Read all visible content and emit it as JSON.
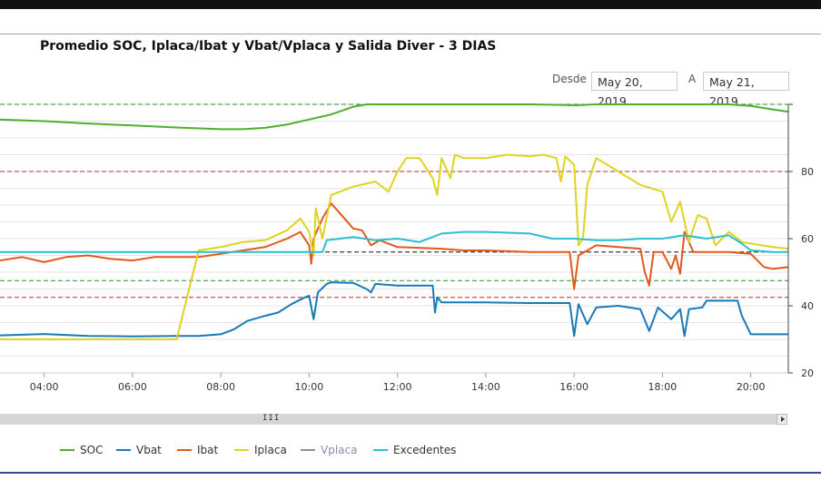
{
  "header": {
    "title": "Promedio SOC, Iplaca/Ibat y Vbat/Vplaca y Salida Diver - 3 DIAS",
    "from_label": "Desde",
    "from_date": "May 20, 2019",
    "to_label": "A",
    "to_date": "May 21, 2019"
  },
  "scrollbar": {
    "grip": "III"
  },
  "chart_data": {
    "type": "line",
    "title": "Promedio SOC, Iplaca/Ibat y Vbat/Vplaca y Salida Diver - 3 DIAS",
    "xlabel": "",
    "ylabel": "",
    "x_range_hours": [
      3.0,
      20.85
    ],
    "x_ticks": [
      "04:00",
      "06:00",
      "08:00",
      "10:00",
      "12:00",
      "14:00",
      "16:00",
      "18:00",
      "20:00"
    ],
    "y_range": [
      20,
      100
    ],
    "y_ticks": [
      20,
      40,
      60,
      80
    ],
    "grid": true,
    "legend_position": "bottom-left",
    "reference_lines": [
      {
        "value": 100,
        "color": "#2e8b2e",
        "style": "dashed"
      },
      {
        "value": 80,
        "color": "#c0272d",
        "style": "dashed"
      },
      {
        "value": 56,
        "color": "#111111",
        "style": "dashed",
        "x_start_hour": 10.2
      },
      {
        "value": 47.5,
        "color": "#2e8b2e",
        "style": "dashed"
      },
      {
        "value": 42.5,
        "color": "#c0272d",
        "style": "dashed"
      }
    ],
    "series": [
      {
        "name": "SOC",
        "color": "#4fae2c",
        "points": [
          [
            3.0,
            95.5
          ],
          [
            4.0,
            95.0
          ],
          [
            5.0,
            94.3
          ],
          [
            6.0,
            93.7
          ],
          [
            7.0,
            93.1
          ],
          [
            8.0,
            92.6
          ],
          [
            8.5,
            92.6
          ],
          [
            9.0,
            93.0
          ],
          [
            9.5,
            94.0
          ],
          [
            10.0,
            95.5
          ],
          [
            10.5,
            97.0
          ],
          [
            11.0,
            99.3
          ],
          [
            11.3,
            100
          ],
          [
            12.0,
            100
          ],
          [
            13.0,
            100
          ],
          [
            14.0,
            100
          ],
          [
            15.0,
            100
          ],
          [
            15.8,
            99.8
          ],
          [
            16.0,
            99.7
          ],
          [
            16.5,
            100
          ],
          [
            17.0,
            100
          ],
          [
            18.0,
            100
          ],
          [
            19.0,
            100
          ],
          [
            19.5,
            100
          ],
          [
            20.0,
            99.5
          ],
          [
            20.5,
            98.5
          ],
          [
            20.85,
            97.8
          ]
        ]
      },
      {
        "name": "Vbat",
        "color": "#1a7ab8",
        "points": [
          [
            3.0,
            31.2
          ],
          [
            4.0,
            31.6
          ],
          [
            5.0,
            31.0
          ],
          [
            6.0,
            30.9
          ],
          [
            7.0,
            31.0
          ],
          [
            7.5,
            31.0
          ],
          [
            8.0,
            31.5
          ],
          [
            8.3,
            33.0
          ],
          [
            8.6,
            35.5
          ],
          [
            9.0,
            37.0
          ],
          [
            9.3,
            38.0
          ],
          [
            9.6,
            40.5
          ],
          [
            9.9,
            42.5
          ],
          [
            10.0,
            43.0
          ],
          [
            10.1,
            36.0
          ],
          [
            10.2,
            44.0
          ],
          [
            10.4,
            46.5
          ],
          [
            10.5,
            47.0
          ],
          [
            11.0,
            46.8
          ],
          [
            11.3,
            45.0
          ],
          [
            11.4,
            44.0
          ],
          [
            11.5,
            46.5
          ],
          [
            12.0,
            46.0
          ],
          [
            12.5,
            46.0
          ],
          [
            12.8,
            46.0
          ],
          [
            12.85,
            38.0
          ],
          [
            12.9,
            42.5
          ],
          [
            13.0,
            41.0
          ],
          [
            14.0,
            41.0
          ],
          [
            15.0,
            40.8
          ],
          [
            15.9,
            40.8
          ],
          [
            16.0,
            31.0
          ],
          [
            16.1,
            40.5
          ],
          [
            16.3,
            34.5
          ],
          [
            16.5,
            39.5
          ],
          [
            17.0,
            40.0
          ],
          [
            17.5,
            39.0
          ],
          [
            17.7,
            32.5
          ],
          [
            17.9,
            39.5
          ],
          [
            18.2,
            36.0
          ],
          [
            18.4,
            39.0
          ],
          [
            18.5,
            31.0
          ],
          [
            18.6,
            39.0
          ],
          [
            18.9,
            39.5
          ],
          [
            19.0,
            41.5
          ],
          [
            19.5,
            41.5
          ],
          [
            19.7,
            41.5
          ],
          [
            19.8,
            37.0
          ],
          [
            20.0,
            31.5
          ],
          [
            20.5,
            31.5
          ],
          [
            20.85,
            31.5
          ]
        ]
      },
      {
        "name": "Ibat",
        "color": "#e05a20",
        "points": [
          [
            3.0,
            53.5
          ],
          [
            3.5,
            54.5
          ],
          [
            4.0,
            53.0
          ],
          [
            4.5,
            54.5
          ],
          [
            5.0,
            55.0
          ],
          [
            5.5,
            54.0
          ],
          [
            6.0,
            53.5
          ],
          [
            6.5,
            54.5
          ],
          [
            7.0,
            54.5
          ],
          [
            7.5,
            54.5
          ],
          [
            8.0,
            55.5
          ],
          [
            8.5,
            56.5
          ],
          [
            9.0,
            57.5
          ],
          [
            9.5,
            60.0
          ],
          [
            9.8,
            62.0
          ],
          [
            10.0,
            58.0
          ],
          [
            10.05,
            52.5
          ],
          [
            10.1,
            60.0
          ],
          [
            10.3,
            66.0
          ],
          [
            10.5,
            70.5
          ],
          [
            10.8,
            66.0
          ],
          [
            11.0,
            63.0
          ],
          [
            11.2,
            62.5
          ],
          [
            11.4,
            58.0
          ],
          [
            11.6,
            59.5
          ],
          [
            12.0,
            57.5
          ],
          [
            13.0,
            57.0
          ],
          [
            13.5,
            56.5
          ],
          [
            14.0,
            56.5
          ],
          [
            15.0,
            56.0
          ],
          [
            15.5,
            56.0
          ],
          [
            15.9,
            56.0
          ],
          [
            16.0,
            45.0
          ],
          [
            16.1,
            55.0
          ],
          [
            16.5,
            58.0
          ],
          [
            17.0,
            57.5
          ],
          [
            17.5,
            57.0
          ],
          [
            17.6,
            50.0
          ],
          [
            17.7,
            46.0
          ],
          [
            17.8,
            56.0
          ],
          [
            18.0,
            56.0
          ],
          [
            18.2,
            51.0
          ],
          [
            18.3,
            55.0
          ],
          [
            18.4,
            49.5
          ],
          [
            18.5,
            62.0
          ],
          [
            18.7,
            56.0
          ],
          [
            19.0,
            56.0
          ],
          [
            19.5,
            56.0
          ],
          [
            20.0,
            55.5
          ],
          [
            20.3,
            51.5
          ],
          [
            20.5,
            51.0
          ],
          [
            20.85,
            51.5
          ]
        ]
      },
      {
        "name": "Iplaca",
        "color": "#e0d21e",
        "points": [
          [
            3.0,
            30.0
          ],
          [
            3.5,
            30.0
          ],
          [
            4.0,
            30.0
          ],
          [
            4.5,
            30.0
          ],
          [
            5.0,
            30.0
          ],
          [
            5.5,
            30.0
          ],
          [
            6.0,
            30.0
          ],
          [
            6.5,
            30.0
          ],
          [
            7.0,
            30.0
          ],
          [
            7.5,
            56.5
          ],
          [
            8.0,
            57.5
          ],
          [
            8.5,
            59.0
          ],
          [
            9.0,
            59.5
          ],
          [
            9.5,
            62.5
          ],
          [
            9.8,
            66.0
          ],
          [
            10.0,
            62.0
          ],
          [
            10.1,
            55.0
          ],
          [
            10.15,
            69.0
          ],
          [
            10.3,
            60.0
          ],
          [
            10.5,
            73.0
          ],
          [
            11.0,
            75.5
          ],
          [
            11.5,
            77.0
          ],
          [
            11.8,
            74.0
          ],
          [
            12.0,
            80.0
          ],
          [
            12.2,
            84.0
          ],
          [
            12.5,
            84.0
          ],
          [
            12.8,
            78.0
          ],
          [
            12.9,
            73.0
          ],
          [
            13.0,
            84.0
          ],
          [
            13.2,
            78.0
          ],
          [
            13.3,
            85.0
          ],
          [
            13.5,
            84.0
          ],
          [
            14.0,
            84.0
          ],
          [
            14.5,
            85.0
          ],
          [
            15.0,
            84.5
          ],
          [
            15.3,
            85.0
          ],
          [
            15.6,
            84.0
          ],
          [
            15.7,
            77.0
          ],
          [
            15.8,
            84.5
          ],
          [
            16.0,
            82.0
          ],
          [
            16.1,
            58.0
          ],
          [
            16.2,
            60.0
          ],
          [
            16.3,
            76.0
          ],
          [
            16.5,
            84.0
          ],
          [
            17.0,
            80.0
          ],
          [
            17.5,
            76.0
          ],
          [
            18.0,
            74.0
          ],
          [
            18.2,
            65.0
          ],
          [
            18.4,
            71.0
          ],
          [
            18.6,
            59.0
          ],
          [
            18.8,
            67.0
          ],
          [
            19.0,
            66.0
          ],
          [
            19.2,
            58.0
          ],
          [
            19.5,
            62.0
          ],
          [
            19.8,
            59.0
          ],
          [
            20.0,
            58.5
          ],
          [
            20.5,
            57.5
          ],
          [
            20.85,
            57.0
          ]
        ]
      },
      {
        "name": "Vplaca",
        "color": "#8c8ca8",
        "points": []
      },
      {
        "name": "Excedentes",
        "color": "#2bbfcf",
        "points": [
          [
            3.0,
            56.0
          ],
          [
            4.0,
            56.0
          ],
          [
            5.0,
            56.0
          ],
          [
            6.0,
            56.0
          ],
          [
            7.0,
            56.0
          ],
          [
            8.0,
            56.0
          ],
          [
            9.0,
            56.0
          ],
          [
            10.0,
            56.0
          ],
          [
            10.3,
            56.0
          ],
          [
            10.4,
            59.5
          ],
          [
            11.0,
            60.5
          ],
          [
            11.5,
            59.5
          ],
          [
            12.0,
            60.0
          ],
          [
            12.5,
            59.0
          ],
          [
            13.0,
            61.5
          ],
          [
            13.5,
            62.0
          ],
          [
            14.0,
            62.0
          ],
          [
            15.0,
            61.5
          ],
          [
            15.5,
            60.0
          ],
          [
            16.0,
            60.0
          ],
          [
            16.5,
            59.5
          ],
          [
            17.0,
            59.5
          ],
          [
            17.5,
            60.0
          ],
          [
            18.0,
            60.0
          ],
          [
            18.5,
            61.0
          ],
          [
            19.0,
            60.0
          ],
          [
            19.5,
            61.0
          ],
          [
            19.8,
            58.5
          ],
          [
            20.0,
            56.5
          ],
          [
            20.5,
            56.0
          ],
          [
            20.85,
            56.0
          ]
        ]
      }
    ]
  }
}
